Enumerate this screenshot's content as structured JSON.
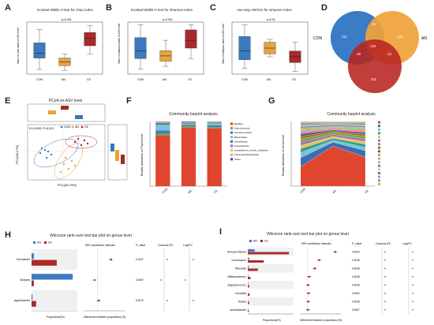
{
  "panels": {
    "A": {
      "letter": "A",
      "title": "Kruskal-Wallis H test for chao index",
      "ylabel": "Value of chao index of ASV level",
      "sig": "p<0.001",
      "groups": [
        "CON",
        "AN",
        "CE"
      ]
    },
    "B": {
      "letter": "B",
      "title": "Kruskal-Wallis H test for shannon index",
      "ylabel": "Value of shannon index of ASV level",
      "sig": "p<0.001",
      "groups": [
        "CON",
        "AN",
        "CE"
      ]
    },
    "C": {
      "letter": "C",
      "title": "one-way ANOVA for simpson index",
      "ylabel": "Value of simpson index of ASV level",
      "sig": "p<0.01",
      "groups": [
        "CON",
        "AN",
        "CE"
      ]
    },
    "D": {
      "letter": "D",
      "sets": [
        "CON",
        "AN",
        "CE"
      ],
      "values": {
        "con_only": "211",
        "an_only": "148",
        "ce_only": "211",
        "con_an": "15",
        "con_ce": "49",
        "an_ce": "24",
        "all": "104"
      }
    },
    "E": {
      "letter": "E",
      "title": "PCoA on ASV level",
      "stats": "R=0.3092, P=0.001",
      "xlabel": "PC1(26.73%)",
      "ylabel": "PC2(18.17%)",
      "legend": [
        "CON",
        "AN",
        "CE"
      ]
    },
    "F": {
      "letter": "F",
      "title": "Community barplot analysis",
      "ylabel": "Relative abundance on Phylum level",
      "legend": [
        "Bacillota",
        "Actinomycetota",
        "Pseudomonadota",
        "Bacteroidota",
        "Chloroflexota",
        "Cyanobacteria",
        "unclassified_k_norank_d_Bacteria",
        "Thermodesulfobacteriota",
        "others"
      ]
    },
    "G": {
      "letter": "G",
      "title": "Community barplot analysis",
      "ylabel": "Relative abundance on Genus level"
    },
    "H": {
      "letter": "H",
      "title": "Wilcoxon rank-sum test bar plot on genus level",
      "col_ci": "95% confidence intervals",
      "col_p": "P_value",
      "col_cohen": "Cumulus ES",
      "col_log": "Log2FC",
      "xlabel_left": "Proportions(%)",
      "xlabel_ci": "Difference between proportions (%)",
      "legend": [
        "AN",
        "CE"
      ],
      "rows": [
        {
          "name": "Turicibacter",
          "p": "0.0047"
        },
        {
          "name": "Sharpea",
          "p": "0.0057"
        },
        {
          "name": "Agathobacter",
          "p": "0.0073"
        }
      ]
    },
    "I": {
      "letter": "I",
      "title": "Wilcoxon rank-sum test bar plot on genus level",
      "col_ci": "95% confidence intervals",
      "col_p": "P_value",
      "col_cohen": "Cumulus ES",
      "col_log": "Log2FC",
      "xlabel_left": "Proportions(%)",
      "xlabel_ci": "Difference between proportions (%)",
      "legend": [
        "AN",
        "CE"
      ],
      "rows": [
        {
          "name": "Terrisporobacter",
          "p": "0.0009"
        },
        {
          "name": "Lachnospira",
          "p": "0.0036"
        },
        {
          "name": "Rikenella",
          "p": "0.0036"
        },
        {
          "name": "Bifidobacterium",
          "p": "0.0036"
        },
        {
          "name": "Staphylococcus",
          "p": "0.0036"
        },
        {
          "name": "Clostridia",
          "p": "0.0060"
        },
        {
          "name": "Dietzia",
          "p": "0.0036"
        },
        {
          "name": "Acinetobacter",
          "p": "0.0057"
        }
      ]
    }
  },
  "colors": {
    "con": "#3b7bbf",
    "an": "#e8a33d",
    "ce": "#a82a2a",
    "venn_con": "#3a7cc5",
    "venn_an": "#f0a23a",
    "venn_ce": "#b82420"
  },
  "chart_data": [
    {
      "type": "box",
      "panel": "A",
      "categories": [
        "CON",
        "AN",
        "CE"
      ],
      "box": [
        {
          "min": 900,
          "q1": 1020,
          "median": 1070,
          "q3": 1180,
          "max": 1320
        },
        {
          "min": 890,
          "q1": 940,
          "median": 980,
          "q3": 1020,
          "max": 1060
        },
        {
          "min": 1060,
          "q1": 1150,
          "median": 1230,
          "q3": 1290,
          "max": 1360
        }
      ]
    },
    {
      "type": "box",
      "panel": "B",
      "categories": [
        "CON",
        "AN",
        "CE"
      ],
      "box": [
        {
          "min": 3.2,
          "q1": 3.6,
          "median": 3.9,
          "q3": 4.4,
          "max": 4.9
        },
        {
          "min": 3.3,
          "q1": 3.5,
          "median": 3.7,
          "q3": 3.9,
          "max": 4.3
        },
        {
          "min": 3.6,
          "q1": 4.0,
          "median": 4.3,
          "q3": 4.7,
          "max": 4.9
        }
      ]
    },
    {
      "type": "box",
      "panel": "C",
      "categories": [
        "CON",
        "AN",
        "CE"
      ],
      "box": [
        {
          "min": 0.06,
          "q1": 0.09,
          "median": 0.12,
          "q3": 0.17,
          "max": 0.21
        },
        {
          "min": 0.1,
          "q1": 0.11,
          "median": 0.13,
          "q3": 0.15,
          "max": 0.16
        },
        {
          "min": 0.05,
          "q1": 0.08,
          "median": 0.1,
          "q3": 0.12,
          "max": 0.15
        }
      ]
    },
    {
      "type": "bar",
      "panel": "F",
      "categories": [
        "CON",
        "AN",
        "CE"
      ],
      "series": [
        {
          "name": "Bacillota",
          "values": [
            0.78,
            0.92,
            0.9
          ]
        },
        {
          "name": "Actinomycetota",
          "values": [
            0.03,
            0.02,
            0.02
          ]
        },
        {
          "name": "Pseudomonadota",
          "values": [
            0.05,
            0.02,
            0.03
          ]
        },
        {
          "name": "Bacteroidota",
          "values": [
            0.09,
            0.02,
            0.03
          ]
        },
        {
          "name": "Chloroflexota",
          "values": [
            0.02,
            0.01,
            0.01
          ]
        },
        {
          "name": "Cyanobacteria",
          "values": [
            0.01,
            0.005,
            0.005
          ]
        },
        {
          "name": "unclassified_k_norank_d_Bacteria",
          "values": [
            0.01,
            0.005,
            0.005
          ]
        },
        {
          "name": "Thermodesulfobacteriota",
          "values": [
            0.005,
            0.005,
            0.005
          ]
        },
        {
          "name": "others",
          "values": [
            0.005,
            0.01,
            0.005
          ]
        }
      ]
    },
    {
      "type": "area",
      "panel": "G",
      "categories": [
        "CON",
        "AN",
        "CE"
      ]
    },
    {
      "type": "bar",
      "panel": "H",
      "rows": [
        "Turicibacter",
        "Sharpea",
        "Agathobacter"
      ],
      "AN": [
        0.05,
        0.9,
        0.02
      ],
      "CE": [
        0.55,
        0.05,
        0.1
      ],
      "diff": [
        0.5,
        -0.1,
        0.05
      ]
    },
    {
      "type": "bar",
      "panel": "I",
      "rows": [
        "Terrisporobacter",
        "Lachnospira",
        "Rikenella",
        "Bifidobacterium",
        "Staphylococcus",
        "Clostridia",
        "Dietzia",
        "Acinetobacter"
      ],
      "AN": [
        1.5,
        0.3,
        0.2,
        0.1,
        0.1,
        0.05,
        0.05,
        0.05
      ],
      "CE": [
        9.0,
        3.5,
        2.2,
        0.6,
        0.3,
        0.4,
        0.3,
        0.2
      ],
      "diff": [
        7.5,
        3.2,
        2.0,
        0.5,
        0.2,
        0.35,
        0.25,
        0.15
      ]
    }
  ]
}
